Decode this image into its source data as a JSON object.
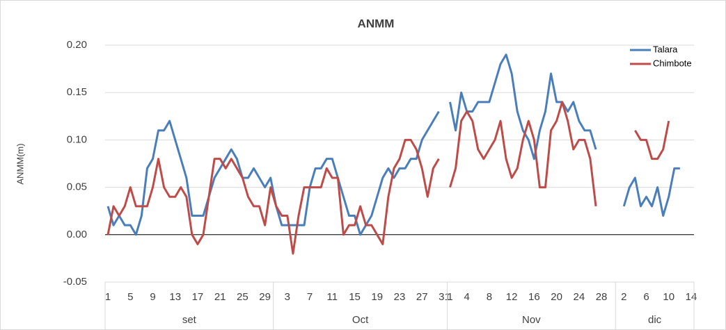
{
  "chart_data": {
    "type": "line",
    "title": "ANMM",
    "y_label": "ANMM(m)",
    "categories": [
      "1",
      null,
      null,
      null,
      "5",
      null,
      null,
      null,
      "9",
      null,
      null,
      null,
      "13",
      null,
      null,
      null,
      "17",
      null,
      null,
      null,
      "21",
      null,
      null,
      null,
      "25",
      null,
      null,
      null,
      "29",
      null,
      null,
      null,
      "3",
      null,
      null,
      null,
      "7",
      null,
      null,
      null,
      "11",
      null,
      null,
      null,
      "15",
      null,
      null,
      null,
      "19",
      null,
      null,
      null,
      "23",
      null,
      null,
      null,
      "27",
      null,
      null,
      null,
      "31",
      "1",
      null,
      null,
      "4",
      null,
      null,
      null,
      "8",
      null,
      null,
      null,
      "12",
      null,
      null,
      null,
      "16",
      null,
      null,
      null,
      "20",
      null,
      null,
      null,
      "24",
      null,
      null,
      null,
      "28",
      null,
      null,
      null,
      "2",
      null,
      null,
      null,
      "6",
      null,
      null,
      null,
      "10",
      null,
      null,
      null,
      "14"
    ],
    "groups": [
      {
        "label": "set",
        "size": 30
      },
      {
        "label": "Oct",
        "size": 31
      },
      {
        "label": "Nov",
        "size": 30
      },
      {
        "label": "dic",
        "size": 14
      }
    ],
    "series": [
      {
        "name": "Talara",
        "color": "#4a7ebb",
        "values": [
          0.03,
          0.01,
          0.02,
          0.01,
          0.01,
          0,
          0.02,
          0.07,
          0.08,
          0.11,
          0.11,
          0.12,
          0.1,
          0.08,
          0.06,
          0.02,
          0.02,
          0.02,
          0.04,
          0.06,
          0.07,
          0.08,
          0.09,
          0.08,
          0.06,
          0.06,
          0.07,
          0.06,
          0.05,
          0.06,
          0.03,
          0.01,
          0.01,
          0.01,
          0.01,
          0.01,
          0.05,
          0.07,
          0.07,
          0.08,
          0.08,
          0.06,
          0.04,
          0.02,
          0.02,
          0.0,
          0.01,
          0.02,
          0.04,
          0.06,
          0.07,
          0.06,
          0.07,
          0.07,
          0.08,
          0.08,
          0.1,
          0.11,
          0.12,
          0.13,
          null,
          0.14,
          0.11,
          0.15,
          0.13,
          0.13,
          0.14,
          0.14,
          0.14,
          0.16,
          0.18,
          0.19,
          0.17,
          0.13,
          0.11,
          0.1,
          0.08,
          0.11,
          0.13,
          0.17,
          0.14,
          0.14,
          0.13,
          0.14,
          0.12,
          0.11,
          0.11,
          0.09,
          null,
          null,
          null,
          null,
          0.03,
          0.05,
          0.06,
          0.03,
          0.04,
          0.03,
          0.05,
          0.02,
          0.04,
          0.07,
          0.07,
          null,
          null
        ]
      },
      {
        "name": "Chimbote",
        "color": "#be4b48",
        "values": [
          0,
          0.03,
          0.02,
          0.03,
          0.05,
          0.03,
          0.03,
          0.03,
          0.05,
          0.08,
          0.05,
          0.04,
          0.04,
          0.05,
          0.04,
          0,
          -0.01,
          0,
          0.04,
          0.08,
          0.08,
          0.07,
          0.08,
          0.07,
          0.06,
          0.04,
          0.03,
          0.03,
          0.01,
          0.05,
          0.03,
          0.02,
          0.02,
          -0.02,
          0.02,
          0.05,
          0.05,
          0.05,
          0.05,
          0.07,
          0.06,
          0.06,
          0,
          0.01,
          0.01,
          0.03,
          0.01,
          0.01,
          0,
          -0.01,
          0.04,
          0.07,
          0.08,
          0.1,
          0.1,
          0.09,
          0.07,
          0.04,
          0.07,
          0.08,
          null,
          0.05,
          0.07,
          0.12,
          0.13,
          0.12,
          0.09,
          0.08,
          0.09,
          0.1,
          0.12,
          0.08,
          0.06,
          0.07,
          0.1,
          0.12,
          0.1,
          0.05,
          0.05,
          0.11,
          0.12,
          0.14,
          0.12,
          0.09,
          0.1,
          0.1,
          0.08,
          0.03,
          null,
          null,
          null,
          null,
          null,
          null,
          0.11,
          0.1,
          0.1,
          0.08,
          0.08,
          0.09,
          0.12,
          null,
          null,
          null,
          null
        ]
      }
    ],
    "ylim": [
      -0.05,
      0.2
    ],
    "yticks": [
      {
        "value": -0.05,
        "label": "-0.05"
      },
      {
        "value": 0,
        "label": "0.00"
      },
      {
        "value": 0.05,
        "label": "0.05"
      },
      {
        "value": 0.1,
        "label": "0.10"
      },
      {
        "value": 0.15,
        "label": "0.15"
      },
      {
        "value": 0.2,
        "label": "0.20"
      }
    ],
    "grid": true,
    "legend": "upper right"
  }
}
